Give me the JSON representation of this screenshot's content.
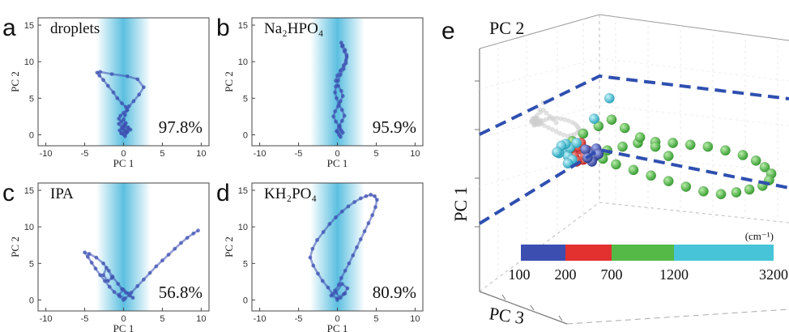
{
  "colors": {
    "trajectory": "#3c4fb0",
    "band": "#3fb4db",
    "colorbar": [
      "#3c4fb0",
      "#e2312f",
      "#55b947",
      "#48c4d8"
    ],
    "dashed_plane": "#2f4fb0"
  },
  "chart_data": [
    {
      "type": "scatter",
      "letter": "a",
      "title": "droplets",
      "percent": "97.8%",
      "xlabel": "PC 1",
      "ylabel": "PC 2",
      "xlim": [
        -11,
        11
      ],
      "ylim": [
        -1.5,
        16
      ],
      "xticks": [
        "-10",
        "-5",
        "0",
        "5",
        "10"
      ],
      "yticks": [
        "0",
        "5",
        "10",
        "15"
      ],
      "band": [
        -3.5,
        3.5
      ],
      "series": [
        {
          "x": [
            0.1,
            0.4,
            0.6,
            0.2,
            -0.3,
            -0.6,
            -0.4,
            0.0,
            0.5,
            0.3,
            -0.2,
            -0.8,
            -1.3,
            -2.0,
            -2.6,
            -3.1,
            -3.4,
            -3.0,
            -1.5,
            0.5,
            1.8,
            2.6,
            2.0,
            1.3,
            0.7,
            0.4,
            0.2,
            0.0,
            0.3,
            -0.1,
            -0.5,
            -0.2,
            0.2,
            0.6,
            0.9,
            0.4,
            -0.2,
            -0.6,
            0.1,
            0.5,
            0.2,
            -0.3,
            0.0
          ],
          "y": [
            0.0,
            0.4,
            0.9,
            1.4,
            1.8,
            2.2,
            2.6,
            3.0,
            3.4,
            3.8,
            4.3,
            5.0,
            5.8,
            6.7,
            7.5,
            8.1,
            8.5,
            8.6,
            8.3,
            8.0,
            7.6,
            6.5,
            5.5,
            4.6,
            3.9,
            3.3,
            2.7,
            2.1,
            1.6,
            1.1,
            0.6,
            0.2,
            0.5,
            1.0,
            0.7,
            0.3,
            0.9,
            1.5,
            1.2,
            0.4,
            -0.2,
            0.2,
            0.8
          ]
        }
      ]
    },
    {
      "type": "scatter",
      "letter": "b",
      "title": "Na₂HPO₄",
      "percent": "95.9%",
      "xlabel": "PC 1",
      "ylabel": "PC 2",
      "xlim": [
        -11,
        11
      ],
      "ylim": [
        -1.5,
        16
      ],
      "xticks": [
        "-10",
        "-5",
        "0",
        "5",
        "10"
      ],
      "yticks": [
        "0",
        "5",
        "10",
        "15"
      ],
      "band": [
        -3.5,
        3.5
      ],
      "series": [
        {
          "x": [
            0.2,
            0.5,
            0.3,
            -0.2,
            -0.5,
            -0.3,
            0.1,
            0.4,
            0.7,
            0.5,
            0.1,
            -0.2,
            0.0,
            0.4,
            0.8,
            1.1,
            1.2,
            1.0,
            0.7,
            0.5,
            0.6,
            0.9,
            1.2,
            1.1,
            0.8,
            0.4,
            0.1,
            -0.2,
            -0.3,
            -0.1,
            0.2,
            0.6,
            0.9,
            0.6,
            0.2,
            -0.1,
            0.3,
            0.7,
            0.4,
            0.0
          ],
          "y": [
            0.0,
            0.6,
            1.2,
            1.8,
            2.5,
            3.2,
            3.9,
            4.6,
            5.3,
            6.0,
            6.7,
            7.4,
            8.1,
            8.8,
            9.5,
            10.2,
            10.9,
            11.6,
            12.2,
            12.6,
            12.1,
            11.4,
            10.6,
            9.8,
            9.0,
            8.2,
            7.4,
            6.6,
            5.8,
            5.0,
            4.2,
            3.4,
            2.6,
            1.9,
            1.2,
            0.5,
            0.9,
            0.3,
            -0.3,
            0.4
          ]
        }
      ]
    },
    {
      "type": "scatter",
      "letter": "c",
      "title": "IPA",
      "percent": "56.8%",
      "xlabel": "PC 1",
      "ylabel": "PC 2",
      "xlim": [
        -11,
        11
      ],
      "ylim": [
        -1.5,
        16
      ],
      "xticks": [
        "-10",
        "-5",
        "0",
        "5",
        "10"
      ],
      "yticks": [
        "0",
        "5",
        "10",
        "15"
      ],
      "band": [
        -3.5,
        3.5
      ],
      "series": [
        {
          "x": [
            0.0,
            -0.5,
            -1.2,
            -1.8,
            -2.4,
            -3.0,
            -3.6,
            -4.1,
            -4.6,
            -5.0,
            -4.4,
            -3.5,
            -2.6,
            -1.9,
            -1.5,
            -2.0,
            -2.6,
            -2.2,
            -1.4,
            -0.7,
            -0.2,
            0.3,
            0.8,
            1.2,
            0.6,
            0.0,
            -0.6,
            0.2,
            1.0,
            1.8,
            2.6,
            3.4,
            4.2,
            5.0,
            5.8,
            6.6,
            7.4,
            8.2,
            9.0,
            9.6
          ],
          "y": [
            0.0,
            0.5,
            1.1,
            1.8,
            2.6,
            3.4,
            4.3,
            5.1,
            5.9,
            6.5,
            6.3,
            5.8,
            5.0,
            4.0,
            3.0,
            2.6,
            3.4,
            4.4,
            3.2,
            2.2,
            1.5,
            1.0,
            0.6,
            0.3,
            0.9,
            1.4,
            0.7,
            0.2,
            1.0,
            1.9,
            2.8,
            3.7,
            4.6,
            5.4,
            6.2,
            7.0,
            7.8,
            8.5,
            9.1,
            9.5
          ]
        }
      ]
    },
    {
      "type": "scatter",
      "letter": "d",
      "title": "KH₂PO₄",
      "percent": "80.9%",
      "xlabel": "PC 1",
      "ylabel": "PC 2",
      "xlim": [
        -11,
        11
      ],
      "ylim": [
        -1.5,
        16
      ],
      "xticks": [
        "-10",
        "-5",
        "0",
        "5",
        "10"
      ],
      "yticks": [
        "0",
        "5",
        "10",
        "15"
      ],
      "band": [
        -3.5,
        3.5
      ],
      "series": [
        {
          "x": [
            0.0,
            -0.6,
            -1.2,
            -1.9,
            -2.5,
            -3.1,
            -3.5,
            -3.2,
            -2.6,
            -1.8,
            -1.0,
            -0.2,
            0.6,
            1.4,
            2.2,
            3.0,
            3.7,
            4.3,
            4.8,
            5.1,
            4.9,
            4.5,
            4.0,
            3.5,
            3.0,
            2.5,
            2.0,
            1.5,
            1.0,
            0.5,
            0.2,
            -0.3,
            -0.8,
            0.0,
            0.8,
            1.3,
            0.6,
            -0.2,
            0.4,
            1.0
          ],
          "y": [
            0.0,
            0.8,
            1.7,
            2.6,
            3.6,
            4.7,
            5.8,
            7.0,
            8.2,
            9.3,
            10.4,
            11.3,
            12.1,
            12.8,
            13.4,
            13.9,
            14.2,
            14.4,
            14.2,
            13.7,
            12.7,
            11.6,
            10.5,
            9.4,
            8.3,
            7.2,
            6.1,
            5.0,
            4.0,
            3.0,
            2.1,
            1.3,
            0.6,
            0.2,
            0.8,
            1.6,
            2.2,
            1.0,
            0.3,
            0.9
          ]
        }
      ]
    },
    {
      "type": "scatter",
      "letter": "e",
      "title": "",
      "xlabel": "PC 3",
      "ylabel": "PC 1",
      "zlabel": "PC 2",
      "colorbar": {
        "unit": "(cm⁻¹)",
        "ticks": [
          "100",
          "200",
          "700",
          "1200",
          "3200"
        ],
        "segments": [
          {
            "from": "100",
            "to": "200",
            "color": "#3c4fb0"
          },
          {
            "from": "200",
            "to": "700",
            "color": "#e2312f"
          },
          {
            "from": "700",
            "to": "1200",
            "color": "#55b947"
          },
          {
            "from": "1200",
            "to": "3200",
            "color": "#48c4d8"
          }
        ]
      },
      "series": [
        {
          "color": "#55b947",
          "x": [
            0.0,
            0.8,
            1.5,
            2.2,
            3.0,
            3.8,
            4.6,
            5.4,
            6.2,
            7.0,
            7.6,
            8.0,
            8.3,
            8.2,
            7.9,
            7.3,
            6.7,
            6.0,
            5.2,
            4.4,
            3.6,
            2.8,
            2.0,
            1.2,
            0.6,
            0.2,
            -0.4,
            -0.8,
            -0.3,
            0.4,
            1.0,
            1.6,
            2.3,
            3.0,
            3.6
          ],
          "y": [
            0.0,
            0.2,
            0.6,
            1.0,
            1.1,
            1.0,
            0.8,
            0.6,
            0.2,
            -0.3,
            -0.9,
            -1.6,
            -2.3,
            -3.0,
            -3.6,
            -4.0,
            -4.3,
            -4.5,
            -4.2,
            -3.7,
            -3.1,
            -2.5,
            -1.9,
            -1.3,
            -0.7,
            -0.2,
            0.4,
            1.2,
            2.0,
            2.8,
            3.5,
            2.6,
            1.6,
            0.6,
            -0.4
          ]
        },
        {
          "color": "#e2312f",
          "x": [
            -0.6,
            -0.4,
            -0.2,
            -0.8,
            -0.5,
            -0.1,
            -0.7,
            -0.3,
            -0.9,
            -0.4,
            -0.2,
            -0.6
          ],
          "y": [
            0.8,
            0.3,
            -0.2,
            0.0,
            0.6,
            0.2,
            -0.5,
            -0.8,
            0.4,
            1.0,
            -0.4,
            -1.0
          ]
        },
        {
          "color": "#48c4d8",
          "x": [
            -1.2,
            -1.0,
            -1.4,
            -0.9,
            -1.1,
            -0.8,
            -1.3,
            -1.0,
            -0.6,
            -1.5
          ],
          "y": [
            0.2,
            -0.4,
            -0.1,
            0.5,
            0.9,
            -0.8,
            0.7,
            -1.2,
            1.0,
            0.0
          ]
        },
        {
          "color": "#3c4fb0",
          "x": [
            0.0,
            0.2,
            -0.2,
            0.3,
            0.1,
            -0.1,
            0.4
          ],
          "y": [
            0.0,
            -0.5,
            0.3,
            0.4,
            -1.0,
            -0.6,
            -0.2
          ]
        },
        {
          "color": "#48c4d8",
          "x": [
            0.2,
            0.9
          ],
          "y": [
            3.6,
            5.8
          ]
        }
      ]
    }
  ]
}
